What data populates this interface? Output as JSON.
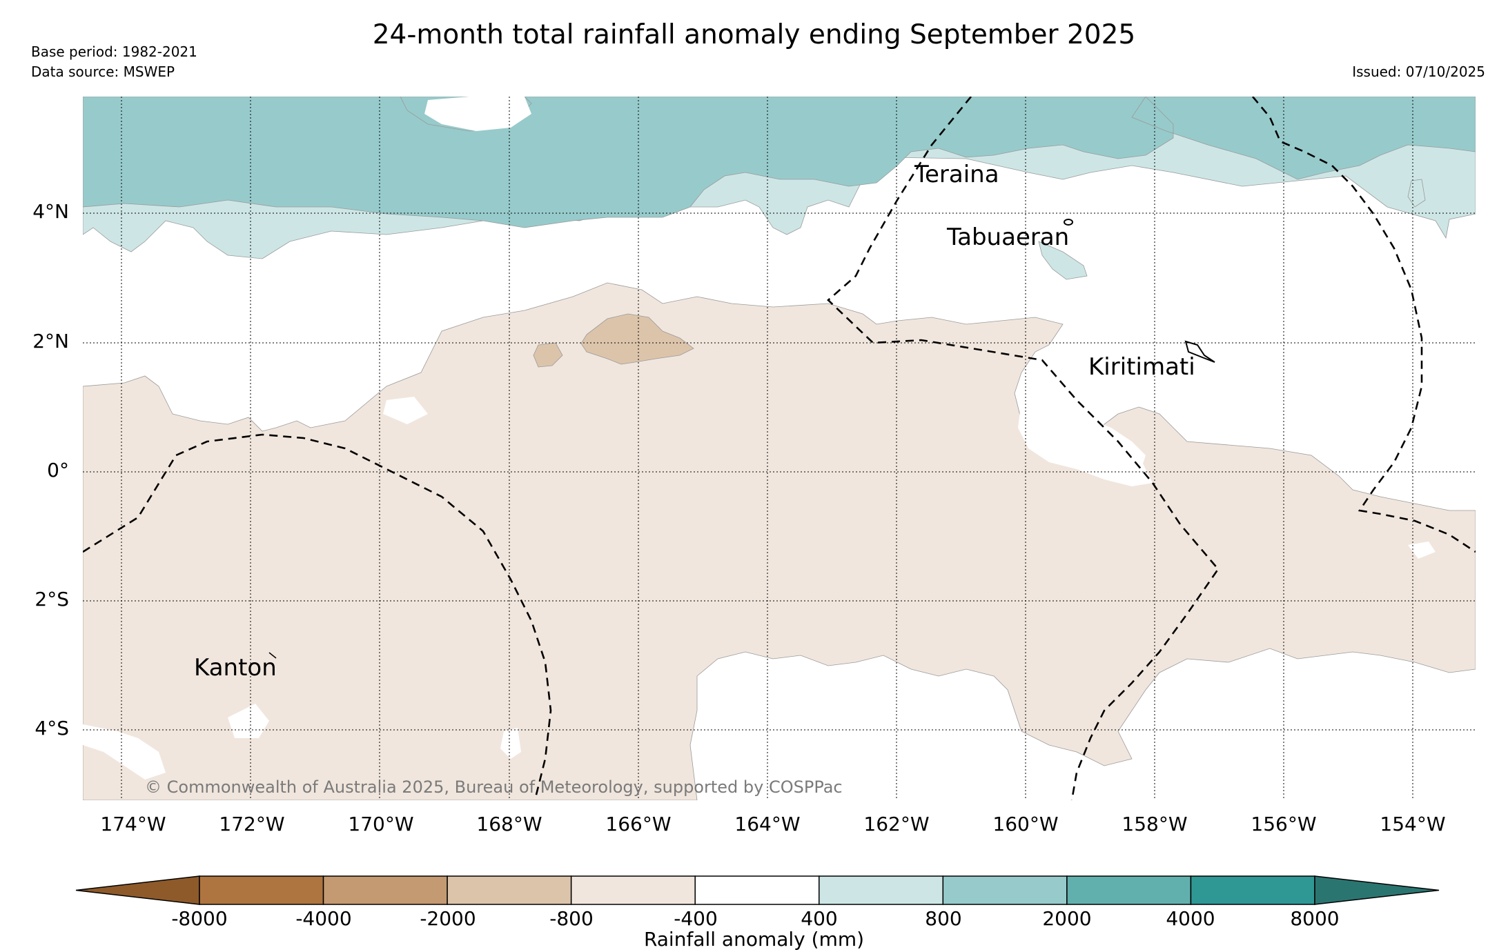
{
  "title": "24-month total rainfall anomaly ending September 2025",
  "base_period": "Base period: 1982-2021",
  "data_source": "Data source: MSWEP",
  "issued": "Issued: 07/10/2025",
  "copyright": "© Commonwealth of Australia 2025, Bureau of Meteorology, supported by COSPPac",
  "lat_labels": [
    "4°N",
    "2°N",
    "0°",
    "2°S",
    "4°S"
  ],
  "lon_labels": [
    "174°W",
    "172°W",
    "170°W",
    "168°W",
    "166°W",
    "164°W",
    "162°W",
    "160°W",
    "158°W",
    "156°W",
    "154°W"
  ],
  "places": [
    "Teraina",
    "Tabuaeran",
    "Kiritimati",
    "Kanton"
  ],
  "colorbar": {
    "label": "Rainfall anomaly (mm)",
    "ticks": [
      "-8000",
      "-4000",
      "-2000",
      "-800",
      "-400",
      "400",
      "800",
      "2000",
      "4000",
      "8000"
    ],
    "colors": [
      "#8e5a2a",
      "#ae7540",
      "#c49a72",
      "#dcc4ab",
      "#f0e6dd",
      "#ffffff",
      "#cde6e5",
      "#97cacb",
      "#62b0ae",
      "#2f9794",
      "#2b7571"
    ]
  },
  "map_colors": {
    "dry_light": "#f0e6dd",
    "dry_medium": "#dcc4ab",
    "wet_light": "#cde6e5",
    "wet_medium": "#97cacb"
  }
}
